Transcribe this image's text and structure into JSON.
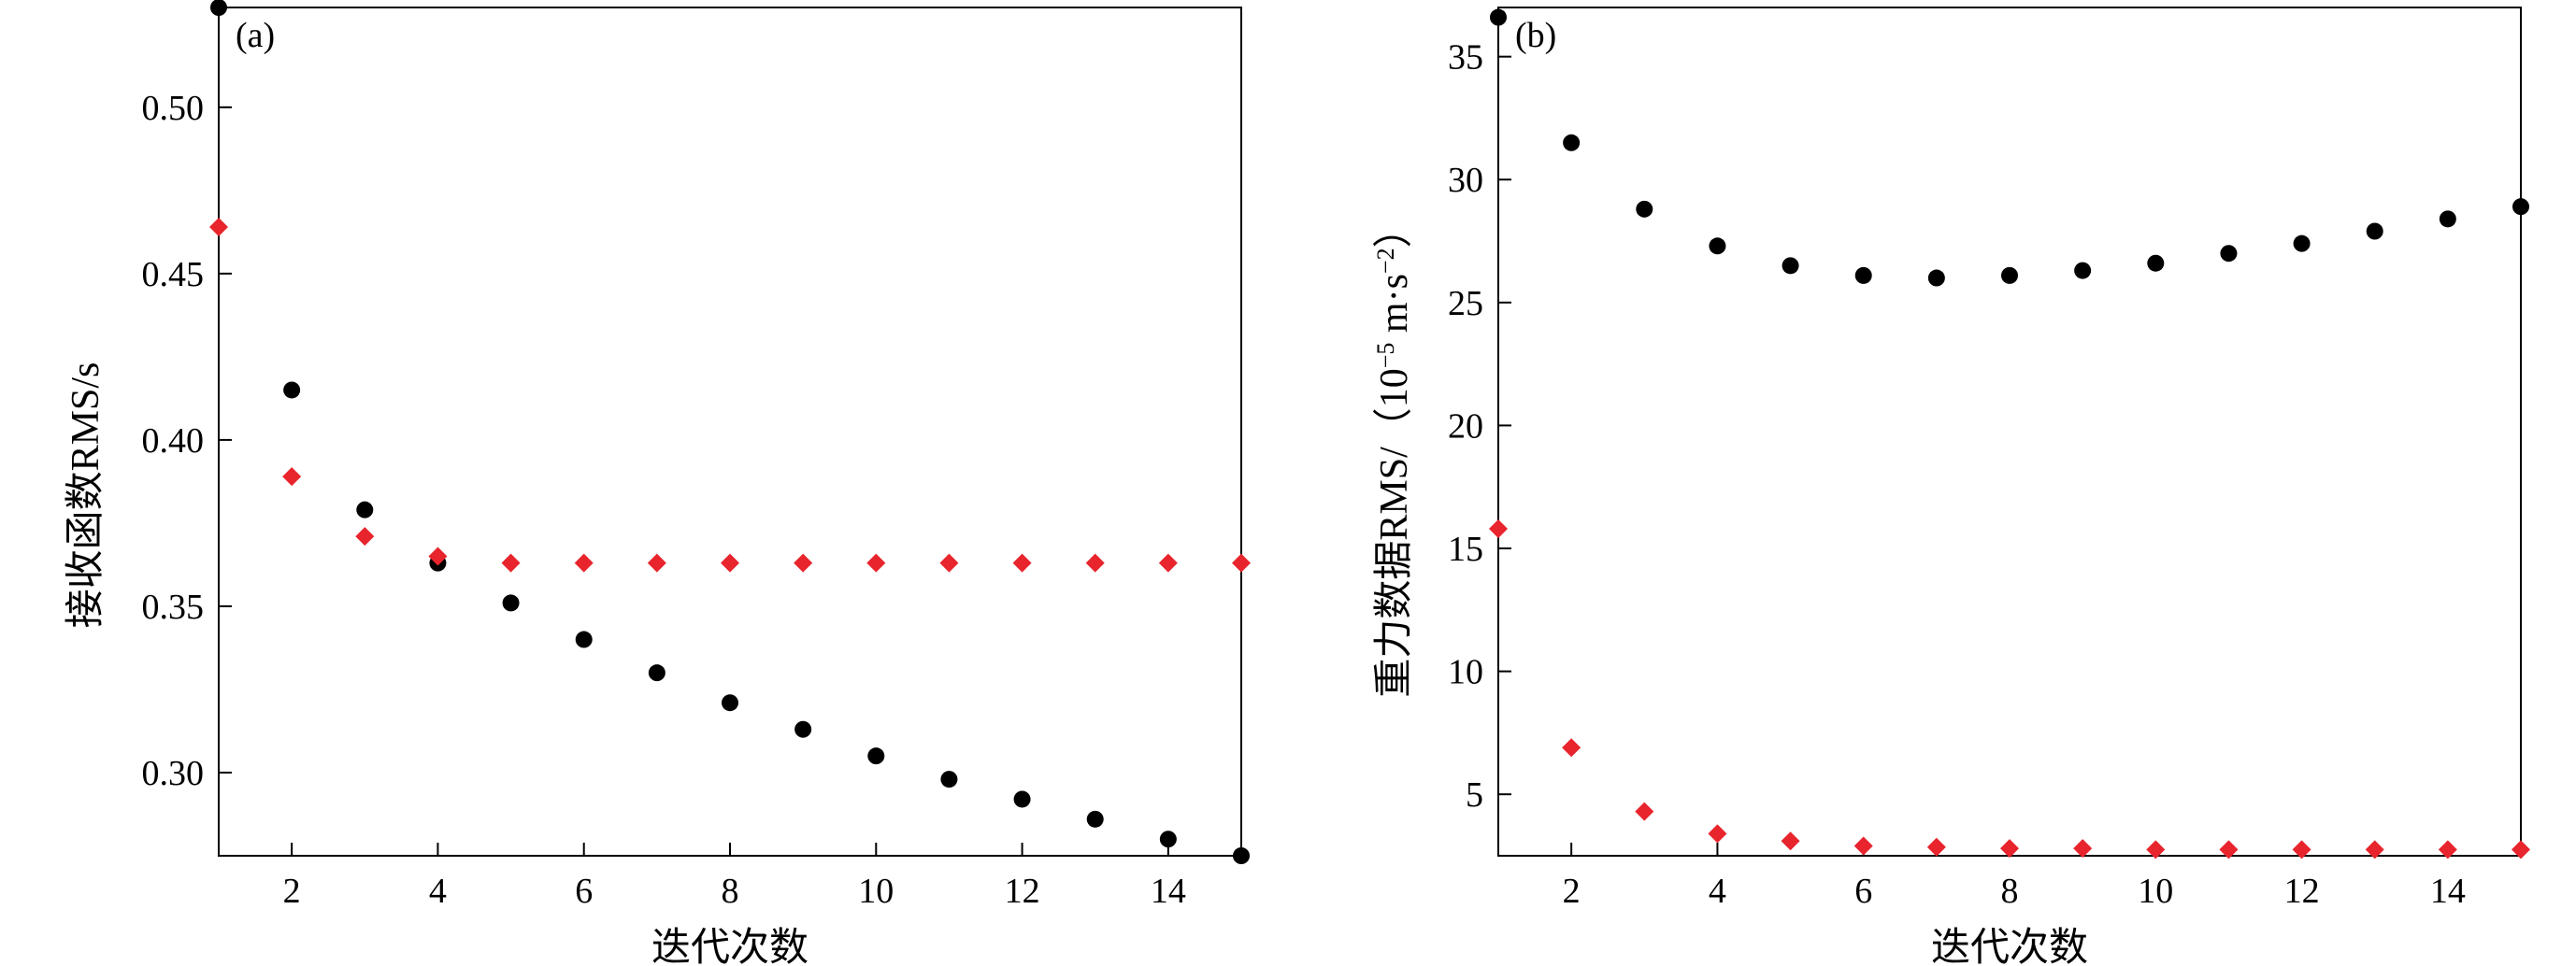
{
  "colors": {
    "black_series": "#000000",
    "red_series": "#e8242c",
    "axes": "#000000"
  },
  "chart_data": [
    {
      "type": "scatter",
      "panel_label": "(a)",
      "xlabel": "迭代次数",
      "ylabel": "接收函数RMS/s",
      "xlim": [
        1,
        15
      ],
      "ylim": [
        0.275,
        0.53
      ],
      "xticks": [
        2,
        4,
        6,
        8,
        10,
        12,
        14
      ],
      "yticks": [
        0.3,
        0.35,
        0.4,
        0.45,
        0.5
      ],
      "ytick_labels": [
        "0.30",
        "0.35",
        "0.40",
        "0.45",
        "0.50"
      ],
      "grid": false,
      "legend": "none",
      "series": [
        {
          "marker": "circle",
          "color": "#000000",
          "x": [
            1,
            2,
            3,
            4,
            5,
            6,
            7,
            8,
            9,
            10,
            11,
            12,
            13,
            14,
            15
          ],
          "y": [
            0.53,
            0.415,
            0.379,
            0.363,
            0.351,
            0.34,
            0.33,
            0.321,
            0.313,
            0.305,
            0.298,
            0.292,
            0.286,
            0.28,
            0.275
          ]
        },
        {
          "marker": "diamond",
          "color": "#e8242c",
          "x": [
            1,
            2,
            3,
            4,
            5,
            6,
            7,
            8,
            9,
            10,
            11,
            12,
            13,
            14,
            15
          ],
          "y": [
            0.464,
            0.389,
            0.371,
            0.365,
            0.363,
            0.363,
            0.363,
            0.363,
            0.363,
            0.363,
            0.363,
            0.363,
            0.363,
            0.363,
            0.363
          ]
        }
      ]
    },
    {
      "type": "scatter",
      "panel_label": "(b)",
      "xlabel": "迭代次数",
      "ylabel_main": "重力数据RMS/（10",
      "ylabel_sup1": "−5",
      "ylabel_mid": " m·s",
      "ylabel_sup2": "−2",
      "ylabel_end": "）",
      "xlim": [
        1,
        15
      ],
      "ylim": [
        2.5,
        37
      ],
      "xticks": [
        2,
        4,
        6,
        8,
        10,
        12,
        14
      ],
      "yticks": [
        5,
        10,
        15,
        20,
        25,
        30,
        35
      ],
      "ytick_labels": [
        "5",
        "10",
        "15",
        "20",
        "25",
        "30",
        "35"
      ],
      "grid": false,
      "legend": "none",
      "series": [
        {
          "marker": "circle",
          "color": "#000000",
          "x": [
            1,
            2,
            3,
            4,
            5,
            6,
            7,
            8,
            9,
            10,
            11,
            12,
            13,
            14,
            15
          ],
          "y": [
            36.6,
            31.5,
            28.8,
            27.3,
            26.5,
            26.1,
            26.0,
            26.1,
            26.3,
            26.6,
            27.0,
            27.4,
            27.9,
            28.4,
            28.9
          ]
        },
        {
          "marker": "diamond",
          "color": "#e8242c",
          "x": [
            1,
            2,
            3,
            4,
            5,
            6,
            7,
            8,
            9,
            10,
            11,
            12,
            13,
            14,
            15
          ],
          "y": [
            15.8,
            6.9,
            4.3,
            3.4,
            3.1,
            2.9,
            2.85,
            2.8,
            2.8,
            2.75,
            2.75,
            2.75,
            2.75,
            2.75,
            2.75
          ]
        }
      ]
    }
  ]
}
